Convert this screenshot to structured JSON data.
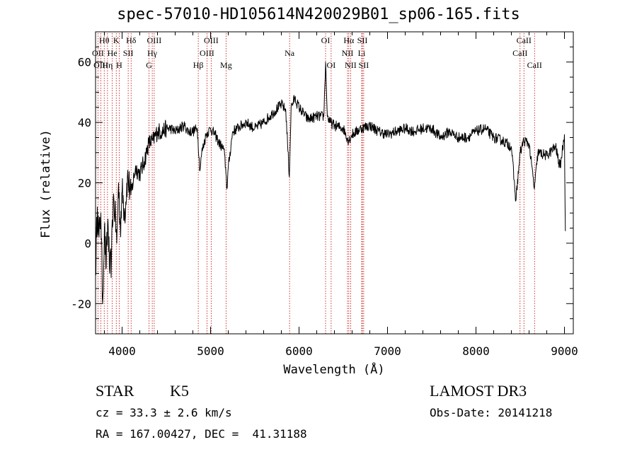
{
  "chart_data": {
    "type": "line",
    "title": "spec-57010-HD105614N420029B01_sp06-165.fits",
    "xlabel": "Wavelength (Å)",
    "ylabel": "Flux (relative)",
    "xlim": [
      3700,
      9100
    ],
    "ylim": [
      -30,
      70
    ],
    "xticks": [
      4000,
      5000,
      6000,
      7000,
      8000,
      9000
    ],
    "yticks": [
      -20,
      0,
      20,
      40,
      60
    ],
    "series": [
      {
        "name": "flux",
        "x": [
          3700,
          3720,
          3740,
          3760,
          3780,
          3800,
          3820,
          3840,
          3860,
          3880,
          3900,
          3920,
          3940,
          3960,
          3980,
          4000,
          4030,
          4060,
          4100,
          4150,
          4200,
          4250,
          4300,
          4350,
          4400,
          4450,
          4500,
          4550,
          4600,
          4650,
          4700,
          4750,
          4800,
          4850,
          4880,
          4900,
          4950,
          5000,
          5050,
          5100,
          5150,
          5170,
          5185,
          5200,
          5250,
          5300,
          5400,
          5500,
          5600,
          5700,
          5800,
          5850,
          5890,
          5910,
          5950,
          6000,
          6100,
          6200,
          6280,
          6300,
          6320,
          6350,
          6400,
          6500,
          6560,
          6600,
          6700,
          6800,
          6900,
          7000,
          7100,
          7200,
          7300,
          7400,
          7500,
          7600,
          7700,
          7800,
          7900,
          8000,
          8100,
          8200,
          8300,
          8400,
          8450,
          8500,
          8540,
          8600,
          8660,
          8700,
          8800,
          8900,
          8950,
          9000,
          9010
        ],
        "y": [
          -10,
          12,
          2,
          10,
          -20,
          5,
          -8,
          8,
          -10,
          -5,
          15,
          10,
          0,
          20,
          5,
          17,
          10,
          22,
          16,
          25,
          23,
          27,
          33,
          34,
          37,
          37,
          38,
          38,
          37,
          38,
          39,
          37,
          37,
          38,
          24,
          30,
          36,
          38,
          36,
          33,
          31,
          25,
          18,
          25,
          37,
          38,
          40,
          38,
          40,
          43,
          46,
          44,
          22,
          45,
          48,
          45,
          41,
          42,
          42,
          60,
          42,
          40,
          39,
          38,
          34,
          36,
          38,
          39,
          37,
          36,
          37,
          38,
          37,
          38,
          38,
          35,
          37,
          35,
          35,
          37,
          38,
          35,
          34,
          32,
          14,
          30,
          34,
          33,
          18,
          30,
          29,
          32,
          25,
          36,
          4
        ]
      }
    ],
    "lines": [
      {
        "label": "Hθ",
        "x": 3798,
        "row": 0
      },
      {
        "label": "OII",
        "x": 3727,
        "row": 1
      },
      {
        "label": "OIII",
        "x": 3760,
        "row": 2
      },
      {
        "label": "Hη",
        "x": 3835,
        "row": 2
      },
      {
        "label": "He",
        "x": 3889,
        "row": 1
      },
      {
        "label": "K",
        "x": 3934,
        "row": 0
      },
      {
        "label": "H",
        "x": 3968,
        "row": 2
      },
      {
        "label": "SII",
        "x": 4069,
        "row": 1
      },
      {
        "label": "Hδ",
        "x": 4102,
        "row": 0
      },
      {
        "label": "OIII",
        "x": 4363,
        "row": 0
      },
      {
        "label": "Hγ",
        "x": 4341,
        "row": 1
      },
      {
        "label": "G",
        "x": 4305,
        "row": 2
      },
      {
        "label": "Hβ",
        "x": 4861,
        "row": 2
      },
      {
        "label": "OIII",
        "x": 5007,
        "row": 0
      },
      {
        "label": "OIII",
        "x": 4959,
        "row": 1
      },
      {
        "label": "Mg",
        "x": 5175,
        "row": 2
      },
      {
        "label": "Na",
        "x": 5893,
        "row": 1
      },
      {
        "label": "OI",
        "x": 6300,
        "row": 0
      },
      {
        "label": "OI",
        "x": 6363,
        "row": 2
      },
      {
        "label": "Hα",
        "x": 6563,
        "row": 0
      },
      {
        "label": "NII",
        "x": 6548,
        "row": 1
      },
      {
        "label": "NII",
        "x": 6583,
        "row": 2
      },
      {
        "label": "SII",
        "x": 6716,
        "row": 0
      },
      {
        "label": "Li",
        "x": 6708,
        "row": 1
      },
      {
        "label": "SII",
        "x": 6731,
        "row": 2
      },
      {
        "label": "CaII",
        "x": 8542,
        "row": 0
      },
      {
        "label": "CaII",
        "x": 8498,
        "row": 1
      },
      {
        "label": "CaII",
        "x": 8662,
        "row": 2
      }
    ]
  },
  "info": {
    "object_type": "STAR",
    "subclass": "K5",
    "survey": "LAMOST DR3",
    "cz": "cz = 33.3 ± 2.6 km/s",
    "obs_date": "Obs-Date: 20141218",
    "coords": "RA = 167.00427, DEC =  41.31188"
  },
  "colors": {
    "line_marker": "#c00000",
    "spectrum": "#000000"
  }
}
